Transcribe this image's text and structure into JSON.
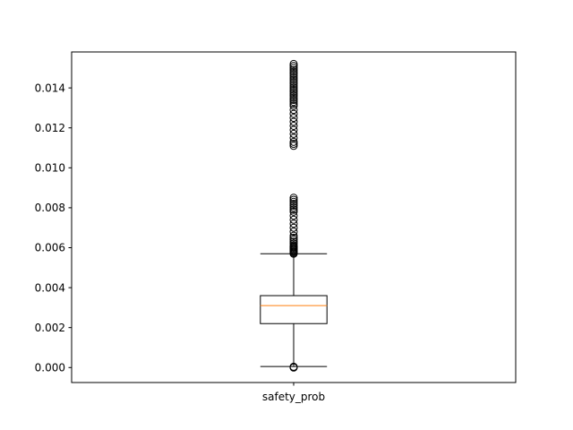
{
  "chart_data": {
    "type": "box",
    "title": "",
    "xlabel": "",
    "ylabel": "",
    "categories": [
      "safety_prob"
    ],
    "ylim": [
      -0.00075,
      0.0158
    ],
    "yticks": [
      0.0,
      0.002,
      0.004,
      0.006,
      0.008,
      0.01,
      0.012,
      0.014
    ],
    "ytick_labels": [
      "0.000",
      "0.002",
      "0.004",
      "0.006",
      "0.008",
      "0.010",
      "0.012",
      "0.014"
    ],
    "grid": false,
    "legend": "none",
    "boxes": [
      {
        "name": "safety_prob",
        "whisker_low": 5e-05,
        "q1": 0.0022,
        "median": 0.0031,
        "q3": 0.0036,
        "whisker_high": 0.0057,
        "outliers": [
          0.0,
          2e-05,
          4e-05,
          0.0057,
          0.00575,
          0.0058,
          0.00585,
          0.0059,
          0.00595,
          0.006,
          0.00605,
          0.0061,
          0.0062,
          0.0063,
          0.0064,
          0.0065,
          0.0066,
          0.0068,
          0.007,
          0.0072,
          0.0074,
          0.0076,
          0.0078,
          0.0079,
          0.008,
          0.0081,
          0.0082,
          0.0083,
          0.0084,
          0.0085,
          0.0111,
          0.0112,
          0.0113,
          0.0115,
          0.0117,
          0.0119,
          0.0121,
          0.0123,
          0.0125,
          0.0127,
          0.0129,
          0.0131,
          0.0132,
          0.0133,
          0.0134,
          0.0135,
          0.0136,
          0.0137,
          0.0138,
          0.0139,
          0.014,
          0.0141,
          0.0142,
          0.0143,
          0.0144,
          0.0145,
          0.0146,
          0.0147,
          0.0148,
          0.0149,
          0.015,
          0.0151,
          0.0152
        ]
      }
    ]
  },
  "colors": {
    "axes": "#000000",
    "box": "#000000",
    "median": "#ff7f0e",
    "background": "#ffffff"
  }
}
